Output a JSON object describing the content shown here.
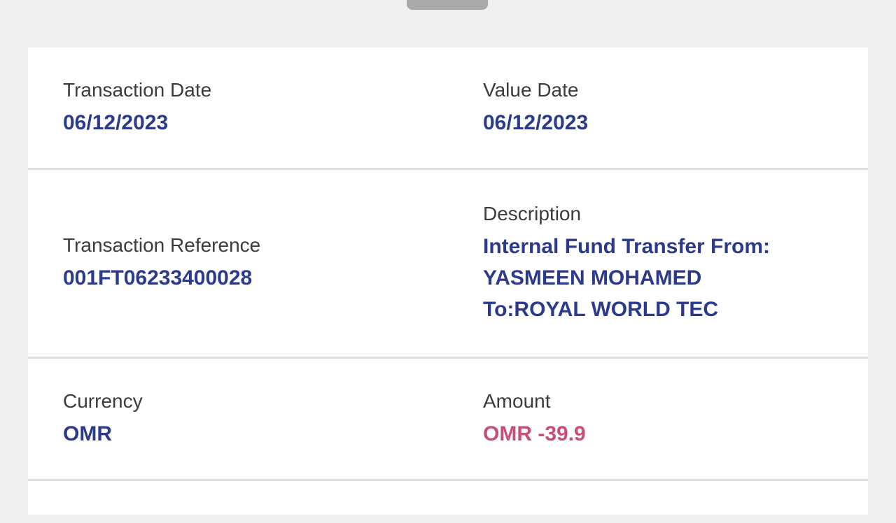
{
  "colors": {
    "background": "#efefef",
    "card": "#ffffff",
    "divider": "#dedede",
    "label": "#3c3c3c",
    "value": "#2c3a8c",
    "amount_negative": "#c74d7a",
    "handle": "#a9a9a9"
  },
  "sheet": {
    "handle_icon": "drag-handle"
  },
  "details": {
    "rows": [
      {
        "left": {
          "label": "Transaction Date",
          "value": "06/12/2023"
        },
        "right": {
          "label": "Value Date",
          "value": "06/12/2023"
        }
      },
      {
        "left": {
          "label": "Transaction Reference",
          "value": "001FT06233400028"
        },
        "right": {
          "label": "Description",
          "value": "Internal Fund Transfer From:\nYASMEEN MOHAMED\nTo:ROYAL WORLD TEC"
        }
      },
      {
        "left": {
          "label": "Currency",
          "value": "OMR"
        },
        "right": {
          "label": "Amount",
          "value": "OMR -39.9"
        }
      }
    ]
  }
}
